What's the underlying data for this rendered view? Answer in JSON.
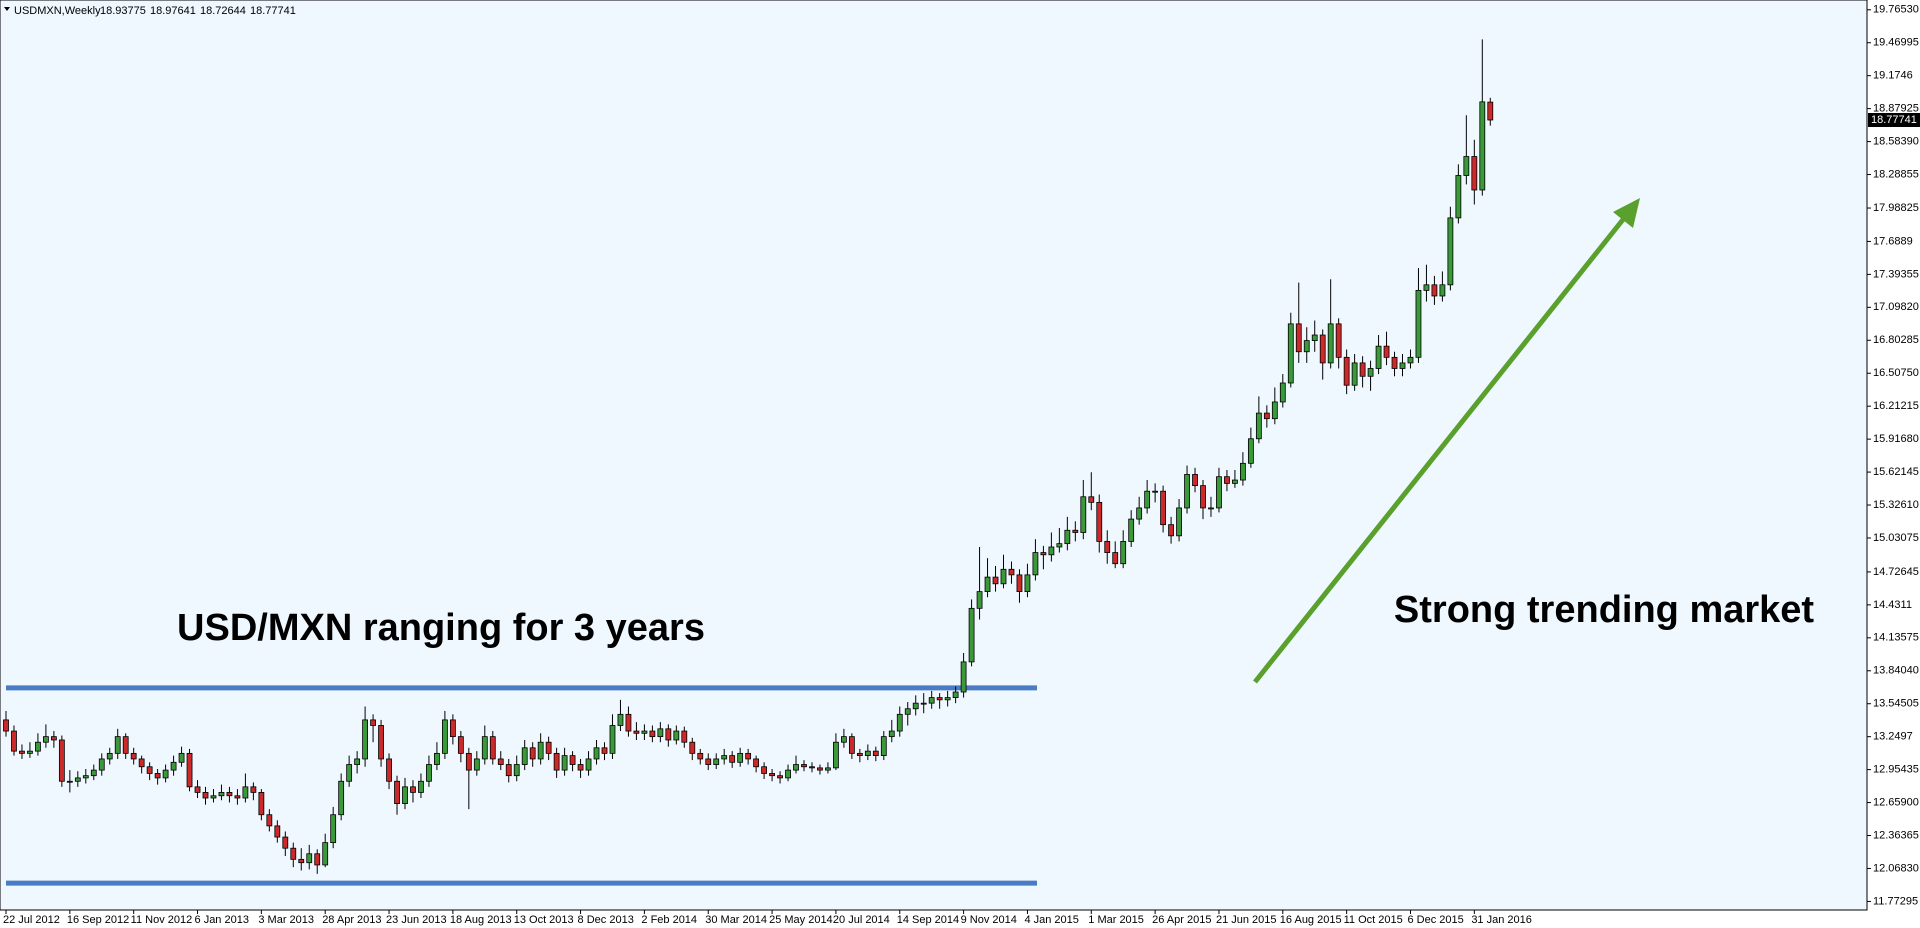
{
  "chart_data": {
    "type": "candlestick",
    "title": "USDMXN,Weekly",
    "categories": [
      "22 Jul 2012",
      null,
      null,
      null,
      null,
      null,
      null,
      null,
      "16 Sep 2012",
      null,
      null,
      null,
      null,
      null,
      null,
      null,
      "11 Nov 2012",
      null,
      null,
      null,
      null,
      null,
      null,
      null,
      "6 Jan 2013",
      null,
      null,
      null,
      null,
      null,
      null,
      null,
      "3 Mar 2013",
      null,
      null,
      null,
      null,
      null,
      null,
      null,
      "28 Apr 2013",
      null,
      null,
      null,
      null,
      null,
      null,
      null,
      "23 Jun 2013",
      null,
      null,
      null,
      null,
      null,
      null,
      null,
      "18 Aug 2013",
      null,
      null,
      null,
      null,
      null,
      null,
      null,
      "13 Oct 2013",
      null,
      null,
      null,
      null,
      null,
      null,
      null,
      "8 Dec 2013",
      null,
      null,
      null,
      null,
      null,
      null,
      null,
      "2 Feb 2014",
      null,
      null,
      null,
      null,
      null,
      null,
      null,
      "30 Mar 2014",
      null,
      null,
      null,
      null,
      null,
      null,
      null,
      "25 May 2014",
      null,
      null,
      null,
      null,
      null,
      null,
      null,
      "20 Jul 2014",
      null,
      null,
      null,
      null,
      null,
      null,
      null,
      "14 Sep 2014",
      null,
      null,
      null,
      null,
      null,
      null,
      null,
      "9 Nov 2014",
      null,
      null,
      null,
      null,
      null,
      null,
      null,
      "4 Jan 2015",
      null,
      null,
      null,
      null,
      null,
      null,
      null,
      "1 Mar 2015",
      null,
      null,
      null,
      null,
      null,
      null,
      null,
      "26 Apr 2015",
      null,
      null,
      null,
      null,
      null,
      null,
      null,
      "21 Jun 2015",
      null,
      null,
      null,
      null,
      null,
      null,
      null,
      "16 Aug 2015",
      null,
      null,
      null,
      null,
      null,
      null,
      null,
      "11 Oct 2015",
      null,
      null,
      null,
      null,
      null,
      null,
      null,
      "6 Dec 2015",
      null,
      null,
      null,
      null,
      null,
      null,
      null,
      "31 Jan 2016",
      null,
      null
    ],
    "candles": [
      [
        13.4,
        13.48,
        13.25,
        13.3
      ],
      [
        13.3,
        13.35,
        13.08,
        13.12
      ],
      [
        13.12,
        13.18,
        13.05,
        13.1
      ],
      [
        13.1,
        13.2,
        13.06,
        13.12
      ],
      [
        13.12,
        13.28,
        13.08,
        13.2
      ],
      [
        13.2,
        13.36,
        13.15,
        13.25
      ],
      [
        13.25,
        13.3,
        13.15,
        13.22
      ],
      [
        13.22,
        13.26,
        12.8,
        12.85
      ],
      [
        12.85,
        12.95,
        12.75,
        12.85
      ],
      [
        12.85,
        12.94,
        12.8,
        12.88
      ],
      [
        12.88,
        12.96,
        12.83,
        12.9
      ],
      [
        12.9,
        13.0,
        12.86,
        12.95
      ],
      [
        12.95,
        13.1,
        12.9,
        13.05
      ],
      [
        13.05,
        13.15,
        13.0,
        13.1
      ],
      [
        13.1,
        13.32,
        13.05,
        13.25
      ],
      [
        13.25,
        13.28,
        13.05,
        13.1
      ],
      [
        13.1,
        13.15,
        13.0,
        13.05
      ],
      [
        13.05,
        13.08,
        12.92,
        12.98
      ],
      [
        12.98,
        13.02,
        12.86,
        12.92
      ],
      [
        12.92,
        12.96,
        12.82,
        12.88
      ],
      [
        12.88,
        13.0,
        12.84,
        12.95
      ],
      [
        12.95,
        13.08,
        12.9,
        13.02
      ],
      [
        13.02,
        13.16,
        12.98,
        13.1
      ],
      [
        13.1,
        13.14,
        12.76,
        12.8
      ],
      [
        12.8,
        12.86,
        12.7,
        12.75
      ],
      [
        12.75,
        12.8,
        12.64,
        12.7
      ],
      [
        12.7,
        12.78,
        12.66,
        12.72
      ],
      [
        12.72,
        12.82,
        12.68,
        12.75
      ],
      [
        12.75,
        12.8,
        12.66,
        12.72
      ],
      [
        12.72,
        12.78,
        12.64,
        12.7
      ],
      [
        12.7,
        12.92,
        12.66,
        12.8
      ],
      [
        12.8,
        12.84,
        12.68,
        12.75
      ],
      [
        12.75,
        12.78,
        12.5,
        12.55
      ],
      [
        12.55,
        12.6,
        12.4,
        12.45
      ],
      [
        12.45,
        12.5,
        12.3,
        12.35
      ],
      [
        12.35,
        12.4,
        12.18,
        12.25
      ],
      [
        12.25,
        12.3,
        12.08,
        12.15
      ],
      [
        12.15,
        12.25,
        12.05,
        12.12
      ],
      [
        12.12,
        12.28,
        12.06,
        12.2
      ],
      [
        12.2,
        12.24,
        12.02,
        12.1
      ],
      [
        12.1,
        12.38,
        12.08,
        12.3
      ],
      [
        12.3,
        12.62,
        12.25,
        12.55
      ],
      [
        12.55,
        12.92,
        12.5,
        12.85
      ],
      [
        12.85,
        13.08,
        12.8,
        13.0
      ],
      [
        13.0,
        13.12,
        12.92,
        13.05
      ],
      [
        13.05,
        13.52,
        12.98,
        13.4
      ],
      [
        13.4,
        13.45,
        13.2,
        13.35
      ],
      [
        13.35,
        13.4,
        12.98,
        13.05
      ],
      [
        13.05,
        13.1,
        12.78,
        12.85
      ],
      [
        12.85,
        12.9,
        12.55,
        12.65
      ],
      [
        12.65,
        12.88,
        12.6,
        12.8
      ],
      [
        12.8,
        12.86,
        12.66,
        12.75
      ],
      [
        12.75,
        12.92,
        12.7,
        12.85
      ],
      [
        12.85,
        13.08,
        12.8,
        13.0
      ],
      [
        13.0,
        13.2,
        12.95,
        13.1
      ],
      [
        13.1,
        13.48,
        13.05,
        13.4
      ],
      [
        13.4,
        13.45,
        13.18,
        13.25
      ],
      [
        13.25,
        13.3,
        13.02,
        13.1
      ],
      [
        13.1,
        13.15,
        12.6,
        12.95
      ],
      [
        12.95,
        13.12,
        12.9,
        13.05
      ],
      [
        13.05,
        13.35,
        13.0,
        13.25
      ],
      [
        13.25,
        13.3,
        13.0,
        13.05
      ],
      [
        13.05,
        13.12,
        12.95,
        13.0
      ],
      [
        13.0,
        13.05,
        12.84,
        12.9
      ],
      [
        12.9,
        13.08,
        12.85,
        13.0
      ],
      [
        13.0,
        13.22,
        12.95,
        13.15
      ],
      [
        13.15,
        13.2,
        12.98,
        13.05
      ],
      [
        13.05,
        13.28,
        13.0,
        13.2
      ],
      [
        13.2,
        13.25,
        13.04,
        13.1
      ],
      [
        13.1,
        13.15,
        12.88,
        12.95
      ],
      [
        12.95,
        13.15,
        12.9,
        13.08
      ],
      [
        13.08,
        13.12,
        12.94,
        13.0
      ],
      [
        13.0,
        13.05,
        12.88,
        12.95
      ],
      [
        12.95,
        13.12,
        12.9,
        13.05
      ],
      [
        13.05,
        13.22,
        13.0,
        13.15
      ],
      [
        13.15,
        13.2,
        13.04,
        13.1
      ],
      [
        13.1,
        13.45,
        13.05,
        13.35
      ],
      [
        13.35,
        13.58,
        13.3,
        13.45
      ],
      [
        13.45,
        13.52,
        13.25,
        13.3
      ],
      [
        13.3,
        13.38,
        13.22,
        13.28
      ],
      [
        13.28,
        13.36,
        13.22,
        13.3
      ],
      [
        13.3,
        13.35,
        13.2,
        13.25
      ],
      [
        13.25,
        13.38,
        13.2,
        13.32
      ],
      [
        13.32,
        13.36,
        13.16,
        13.22
      ],
      [
        13.22,
        13.35,
        13.18,
        13.3
      ],
      [
        13.3,
        13.34,
        13.15,
        13.2
      ],
      [
        13.2,
        13.24,
        13.04,
        13.1
      ],
      [
        13.1,
        13.14,
        13.0,
        13.05
      ],
      [
        13.05,
        13.1,
        12.95,
        13.0
      ],
      [
        13.0,
        13.1,
        12.96,
        13.05
      ],
      [
        13.05,
        13.14,
        13.0,
        13.08
      ],
      [
        13.08,
        13.12,
        12.97,
        13.02
      ],
      [
        13.02,
        13.15,
        12.98,
        13.1
      ],
      [
        13.1,
        13.14,
        13.0,
        13.05
      ],
      [
        13.05,
        13.08,
        12.93,
        12.98
      ],
      [
        12.98,
        13.02,
        12.87,
        12.92
      ],
      [
        12.92,
        12.96,
        12.85,
        12.9
      ],
      [
        12.9,
        12.94,
        12.83,
        12.88
      ],
      [
        12.88,
        13.0,
        12.85,
        12.95
      ],
      [
        12.95,
        13.08,
        12.92,
        13.0
      ],
      [
        13.0,
        13.04,
        12.94,
        12.98
      ],
      [
        12.98,
        13.02,
        12.93,
        12.97
      ],
      [
        12.97,
        13.0,
        12.91,
        12.95
      ],
      [
        12.95,
        13.02,
        12.92,
        12.97
      ],
      [
        12.97,
        13.28,
        12.95,
        13.2
      ],
      [
        13.2,
        13.32,
        13.15,
        13.25
      ],
      [
        13.25,
        13.28,
        13.05,
        13.1
      ],
      [
        13.1,
        13.14,
        13.02,
        13.08
      ],
      [
        13.08,
        13.18,
        13.04,
        13.12
      ],
      [
        13.12,
        13.16,
        13.03,
        13.08
      ],
      [
        13.08,
        13.3,
        13.04,
        13.25
      ],
      [
        13.25,
        13.4,
        13.2,
        13.3
      ],
      [
        13.3,
        13.52,
        13.25,
        13.45
      ],
      [
        13.45,
        13.56,
        13.35,
        13.5
      ],
      [
        13.5,
        13.62,
        13.44,
        13.55
      ],
      [
        13.55,
        13.64,
        13.46,
        13.55
      ],
      [
        13.55,
        13.66,
        13.5,
        13.6
      ],
      [
        13.6,
        13.64,
        13.5,
        13.58
      ],
      [
        13.58,
        13.66,
        13.52,
        13.6
      ],
      [
        13.6,
        13.7,
        13.55,
        13.65
      ],
      [
        13.65,
        14.0,
        13.6,
        13.92
      ],
      [
        13.92,
        14.48,
        13.88,
        14.4
      ],
      [
        14.4,
        14.95,
        14.3,
        14.55
      ],
      [
        14.55,
        14.85,
        14.5,
        14.68
      ],
      [
        14.68,
        14.78,
        14.55,
        14.62
      ],
      [
        14.62,
        14.88,
        14.58,
        14.75
      ],
      [
        14.75,
        14.82,
        14.62,
        14.7
      ],
      [
        14.7,
        14.75,
        14.45,
        14.55
      ],
      [
        14.55,
        14.8,
        14.5,
        14.7
      ],
      [
        14.7,
        15.02,
        14.65,
        14.9
      ],
      [
        14.9,
        14.96,
        14.75,
        14.88
      ],
      [
        14.88,
        15.08,
        14.82,
        14.95
      ],
      [
        14.95,
        15.12,
        14.9,
        14.98
      ],
      [
        14.98,
        15.22,
        14.92,
        15.1
      ],
      [
        15.1,
        15.18,
        15.0,
        15.08
      ],
      [
        15.08,
        15.55,
        15.02,
        15.4
      ],
      [
        15.4,
        15.62,
        15.28,
        15.35
      ],
      [
        15.35,
        15.42,
        14.9,
        15.0
      ],
      [
        15.0,
        15.1,
        14.8,
        14.9
      ],
      [
        14.9,
        15.0,
        14.76,
        14.8
      ],
      [
        14.8,
        15.1,
        14.76,
        15.0
      ],
      [
        15.0,
        15.28,
        14.95,
        15.2
      ],
      [
        15.2,
        15.4,
        15.15,
        15.3
      ],
      [
        15.3,
        15.55,
        15.25,
        15.45
      ],
      [
        15.45,
        15.52,
        15.35,
        15.45
      ],
      [
        15.45,
        15.5,
        15.08,
        15.15
      ],
      [
        15.15,
        15.22,
        14.98,
        15.05
      ],
      [
        15.05,
        15.38,
        15.0,
        15.3
      ],
      [
        15.3,
        15.68,
        15.25,
        15.6
      ],
      [
        15.6,
        15.66,
        15.44,
        15.5
      ],
      [
        15.5,
        15.55,
        15.2,
        15.3
      ],
      [
        15.3,
        15.4,
        15.22,
        15.3
      ],
      [
        15.3,
        15.66,
        15.26,
        15.58
      ],
      [
        15.58,
        15.64,
        15.45,
        15.52
      ],
      [
        15.52,
        15.64,
        15.48,
        15.55
      ],
      [
        15.55,
        15.8,
        15.5,
        15.7
      ],
      [
        15.7,
        16.02,
        15.66,
        15.92
      ],
      [
        15.92,
        16.3,
        15.88,
        16.15
      ],
      [
        16.15,
        16.22,
        16.02,
        16.1
      ],
      [
        16.1,
        16.38,
        16.05,
        16.25
      ],
      [
        16.25,
        16.5,
        16.2,
        16.42
      ],
      [
        16.42,
        17.05,
        16.38,
        16.95
      ],
      [
        16.95,
        17.32,
        16.6,
        16.7
      ],
      [
        16.7,
        16.92,
        16.6,
        16.8
      ],
      [
        16.8,
        16.98,
        16.7,
        16.85
      ],
      [
        16.85,
        16.9,
        16.45,
        16.6
      ],
      [
        16.6,
        17.35,
        16.55,
        16.95
      ],
      [
        16.95,
        17.0,
        16.55,
        16.65
      ],
      [
        16.65,
        16.72,
        16.32,
        16.4
      ],
      [
        16.4,
        16.68,
        16.35,
        16.6
      ],
      [
        16.6,
        16.66,
        16.38,
        16.48
      ],
      [
        16.48,
        16.62,
        16.35,
        16.55
      ],
      [
        16.55,
        16.85,
        16.5,
        16.75
      ],
      [
        16.75,
        16.88,
        16.58,
        16.65
      ],
      [
        16.65,
        16.7,
        16.48,
        16.55
      ],
      [
        16.55,
        16.68,
        16.48,
        16.6
      ],
      [
        16.6,
        16.72,
        16.55,
        16.65
      ],
      [
        16.65,
        17.45,
        16.6,
        17.25
      ],
      [
        17.25,
        17.48,
        17.15,
        17.3
      ],
      [
        17.3,
        17.38,
        17.12,
        17.2
      ],
      [
        17.2,
        17.42,
        17.15,
        17.3
      ],
      [
        17.3,
        18.0,
        17.25,
        17.9
      ],
      [
        17.9,
        18.38,
        17.85,
        18.28
      ],
      [
        18.28,
        18.82,
        18.2,
        18.45
      ],
      [
        18.45,
        18.6,
        18.02,
        18.15
      ],
      [
        18.15,
        19.5,
        18.1,
        18.94
      ],
      [
        18.93775,
        18.97641,
        18.72644,
        18.77741
      ]
    ],
    "up_color": "#3a9a3a",
    "down_color": "#cc2a2a",
    "ylim": [
      11.696,
      19.853
    ],
    "yticks": [
      {
        "value": 19.7653,
        "label": "19.76530"
      },
      19.46995,
      19.1746,
      18.87925,
      {
        "value": 18.5839,
        "label": "18.58390"
      },
      18.28855,
      17.98825,
      17.6889,
      17.39355,
      {
        "value": 17.0982,
        "label": "17.09820"
      },
      16.80285,
      {
        "value": 16.5075,
        "label": "16.50750"
      },
      16.21215,
      {
        "value": 15.9168,
        "label": "15.91680"
      },
      15.62145,
      {
        "value": 15.3261,
        "label": "15.32610"
      },
      15.03075,
      14.72645,
      14.4311,
      14.13575,
      {
        "value": 13.8404,
        "label": "13.84040"
      },
      13.54505,
      13.2497,
      12.95435,
      {
        "value": 12.659,
        "label": "12.65900"
      },
      12.36365,
      {
        "value": 12.0683,
        "label": "12.06830"
      },
      11.77295
    ],
    "horizontal_lines": {
      "values": [
        13.687,
        11.937
      ],
      "color": "#4a7cc6"
    },
    "arrow_color": "#5aa02c",
    "annotations": [
      "USD/MXN ranging for 3 years",
      "Strong trending market"
    ]
  }
}
